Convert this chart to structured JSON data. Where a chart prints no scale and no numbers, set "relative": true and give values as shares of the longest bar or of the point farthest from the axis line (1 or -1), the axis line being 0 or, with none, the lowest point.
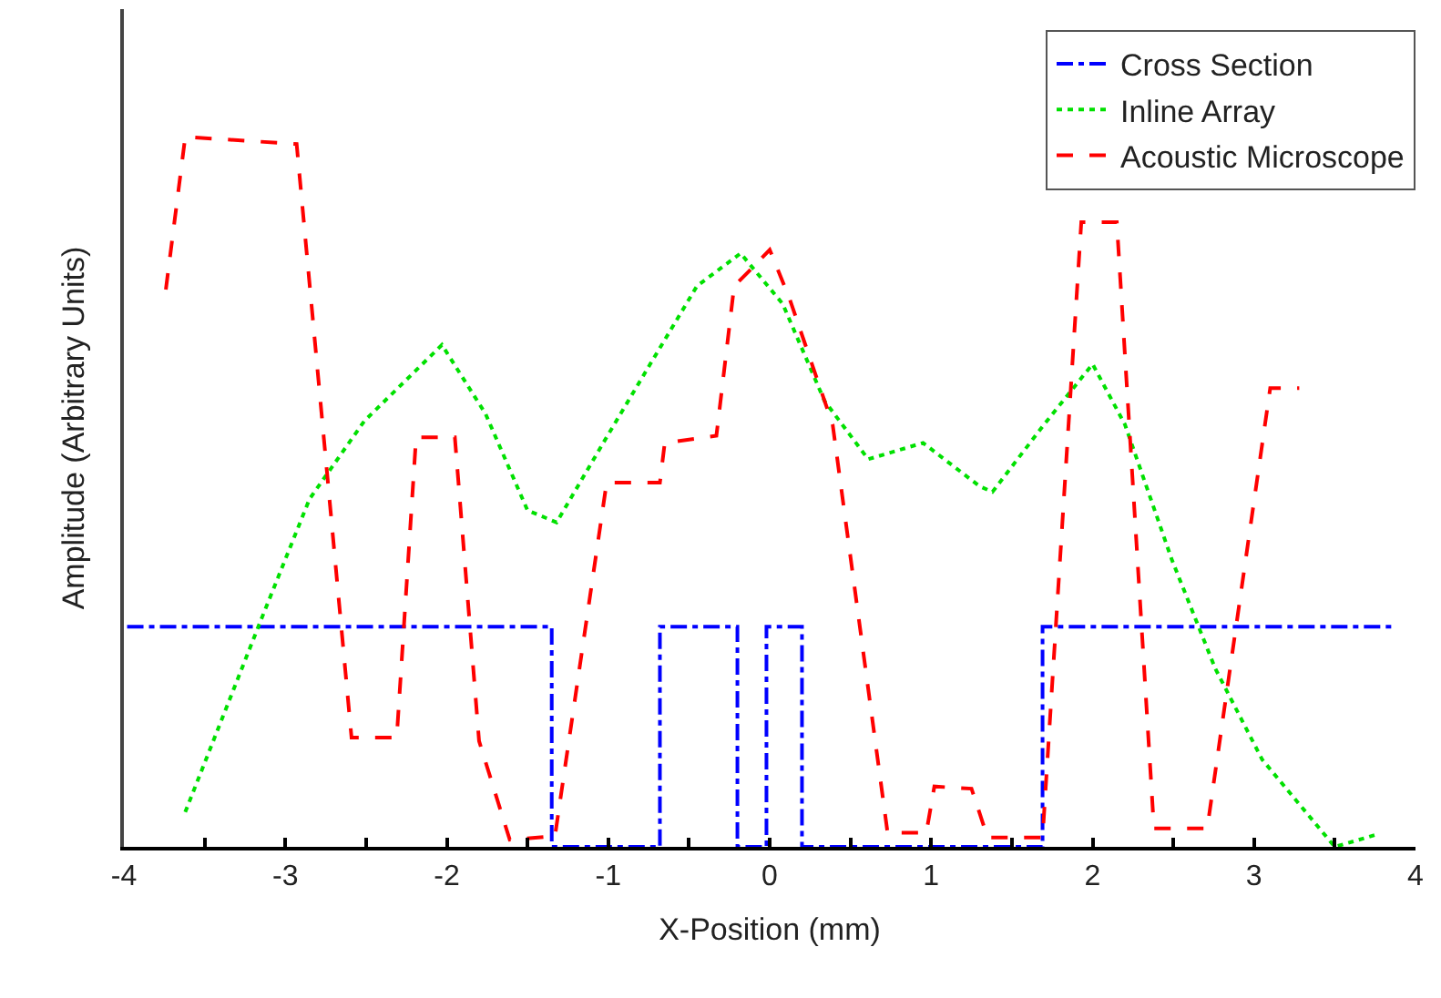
{
  "chart_data": {
    "type": "line",
    "xlabel": "X-Position (mm)",
    "ylabel": "Amplitude (Arbitrary Units)",
    "relative": true,
    "xlim": [
      -4,
      4
    ],
    "xticks": [
      -4,
      {
        "value": -3.5,
        "label": null
      },
      -3,
      {
        "value": -2.5,
        "label": null
      },
      -2,
      {
        "value": -1.5,
        "label": null
      },
      -1,
      {
        "value": -0.5,
        "label": null
      },
      0,
      {
        "value": 0.5,
        "label": null
      },
      1,
      {
        "value": 1.5,
        "label": null
      },
      2,
      {
        "value": 2.5,
        "label": null
      },
      3,
      {
        "value": 3.5,
        "label": null
      },
      4
    ],
    "tick_labels": "x",
    "legend": "top right",
    "marker": "none",
    "series": [
      {
        "name": "Cross Section",
        "color": "#0000ff",
        "line_style": "dashdot",
        "x": [
          -3.98,
          -1.35,
          -1.35,
          -0.68,
          -0.68,
          -0.2,
          -0.2,
          -0.02,
          -0.02,
          0.2,
          0.2,
          1.69,
          1.69,
          3.87
        ],
        "values": [
          0.31,
          0.31,
          0,
          0,
          0.31,
          0.31,
          0,
          0,
          0.31,
          0.31,
          0,
          0,
          0.31,
          0.31
        ]
      },
      {
        "name": "Inline Array",
        "color": "#00e000",
        "line_style": "dotted",
        "x": [
          -3.62,
          -3.15,
          -2.85,
          -2.51,
          -2.03,
          -1.76,
          -1.5,
          -1.32,
          -1.01,
          -0.74,
          -0.45,
          -0.18,
          0.08,
          0.34,
          0.61,
          0.95,
          1.3,
          1.38,
          1.7,
          2.0,
          2.2,
          2.49,
          2.76,
          3.05,
          3.5,
          3.77
        ],
        "values": [
          0.049,
          0.32,
          0.49,
          0.6,
          0.707,
          0.61,
          0.474,
          0.457,
          0.577,
          0.68,
          0.79,
          0.836,
          0.765,
          0.628,
          0.546,
          0.569,
          0.508,
          0.5,
          0.595,
          0.68,
          0.595,
          0.405,
          0.251,
          0.123,
          0.0,
          0.018
        ]
      },
      {
        "name": "Acoustic Microscope",
        "color": "#ff0000",
        "line_style": "dashed",
        "x": [
          -3.74,
          -3.62,
          -2.93,
          -2.59,
          -2.31,
          -2.19,
          -1.95,
          -1.8,
          -1.61,
          -1.33,
          -1.01,
          -0.68,
          -0.65,
          -0.33,
          -0.22,
          -0.11,
          0.0,
          0.12,
          0.39,
          0.73,
          0.97,
          1.02,
          1.25,
          1.35,
          1.69,
          1.93,
          2.15,
          2.38,
          2.71,
          3.1,
          3.28
        ],
        "values": [
          0.785,
          1.0,
          0.99,
          0.154,
          0.154,
          0.577,
          0.577,
          0.149,
          0.01,
          0.015,
          0.513,
          0.513,
          0.569,
          0.579,
          0.79,
          0.815,
          0.841,
          0.774,
          0.595,
          0.02,
          0.02,
          0.085,
          0.082,
          0.013,
          0.013,
          0.88,
          0.88,
          0.026,
          0.026,
          0.646,
          0.646
        ]
      }
    ]
  }
}
